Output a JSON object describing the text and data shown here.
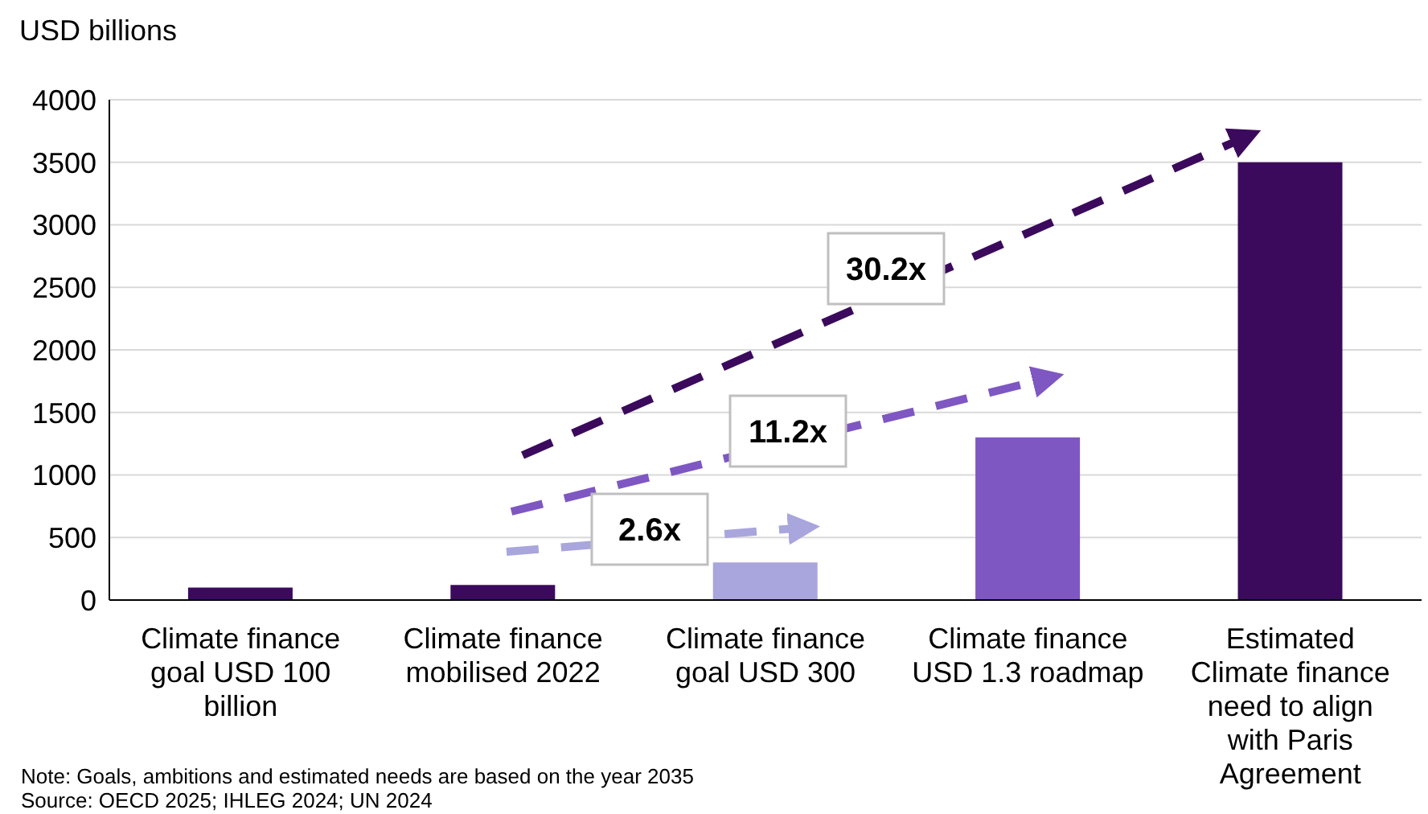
{
  "chart_data": {
    "type": "bar",
    "ylabel": "USD billions",
    "categories": [
      "Climate finance goal USD 100 billion",
      "Climate finance mobilised 2022",
      "Climate finance goal USD 300",
      "Climate finance USD 1.3 roadmap",
      "Estimated Climate finance need to align with Paris Agreement"
    ],
    "values": [
      100,
      120,
      300,
      1300,
      3500
    ],
    "colors": [
      "#3b0a5c",
      "#3b0a5c",
      "#a9a5dd",
      "#7e57c2",
      "#3b0a5c"
    ],
    "ylim": [
      0,
      4000
    ],
    "yticks": [
      0,
      500,
      1000,
      1500,
      2000,
      2500,
      3000,
      3500,
      4000
    ],
    "grid": "y",
    "annotations": [
      "30.2x",
      "11.2x",
      "2.6x",
      "Note: Goals, ambitions and estimated needs are based on the year 2035",
      "Source: OECD 2025; IHLEG 2024; UN 2024"
    ]
  }
}
